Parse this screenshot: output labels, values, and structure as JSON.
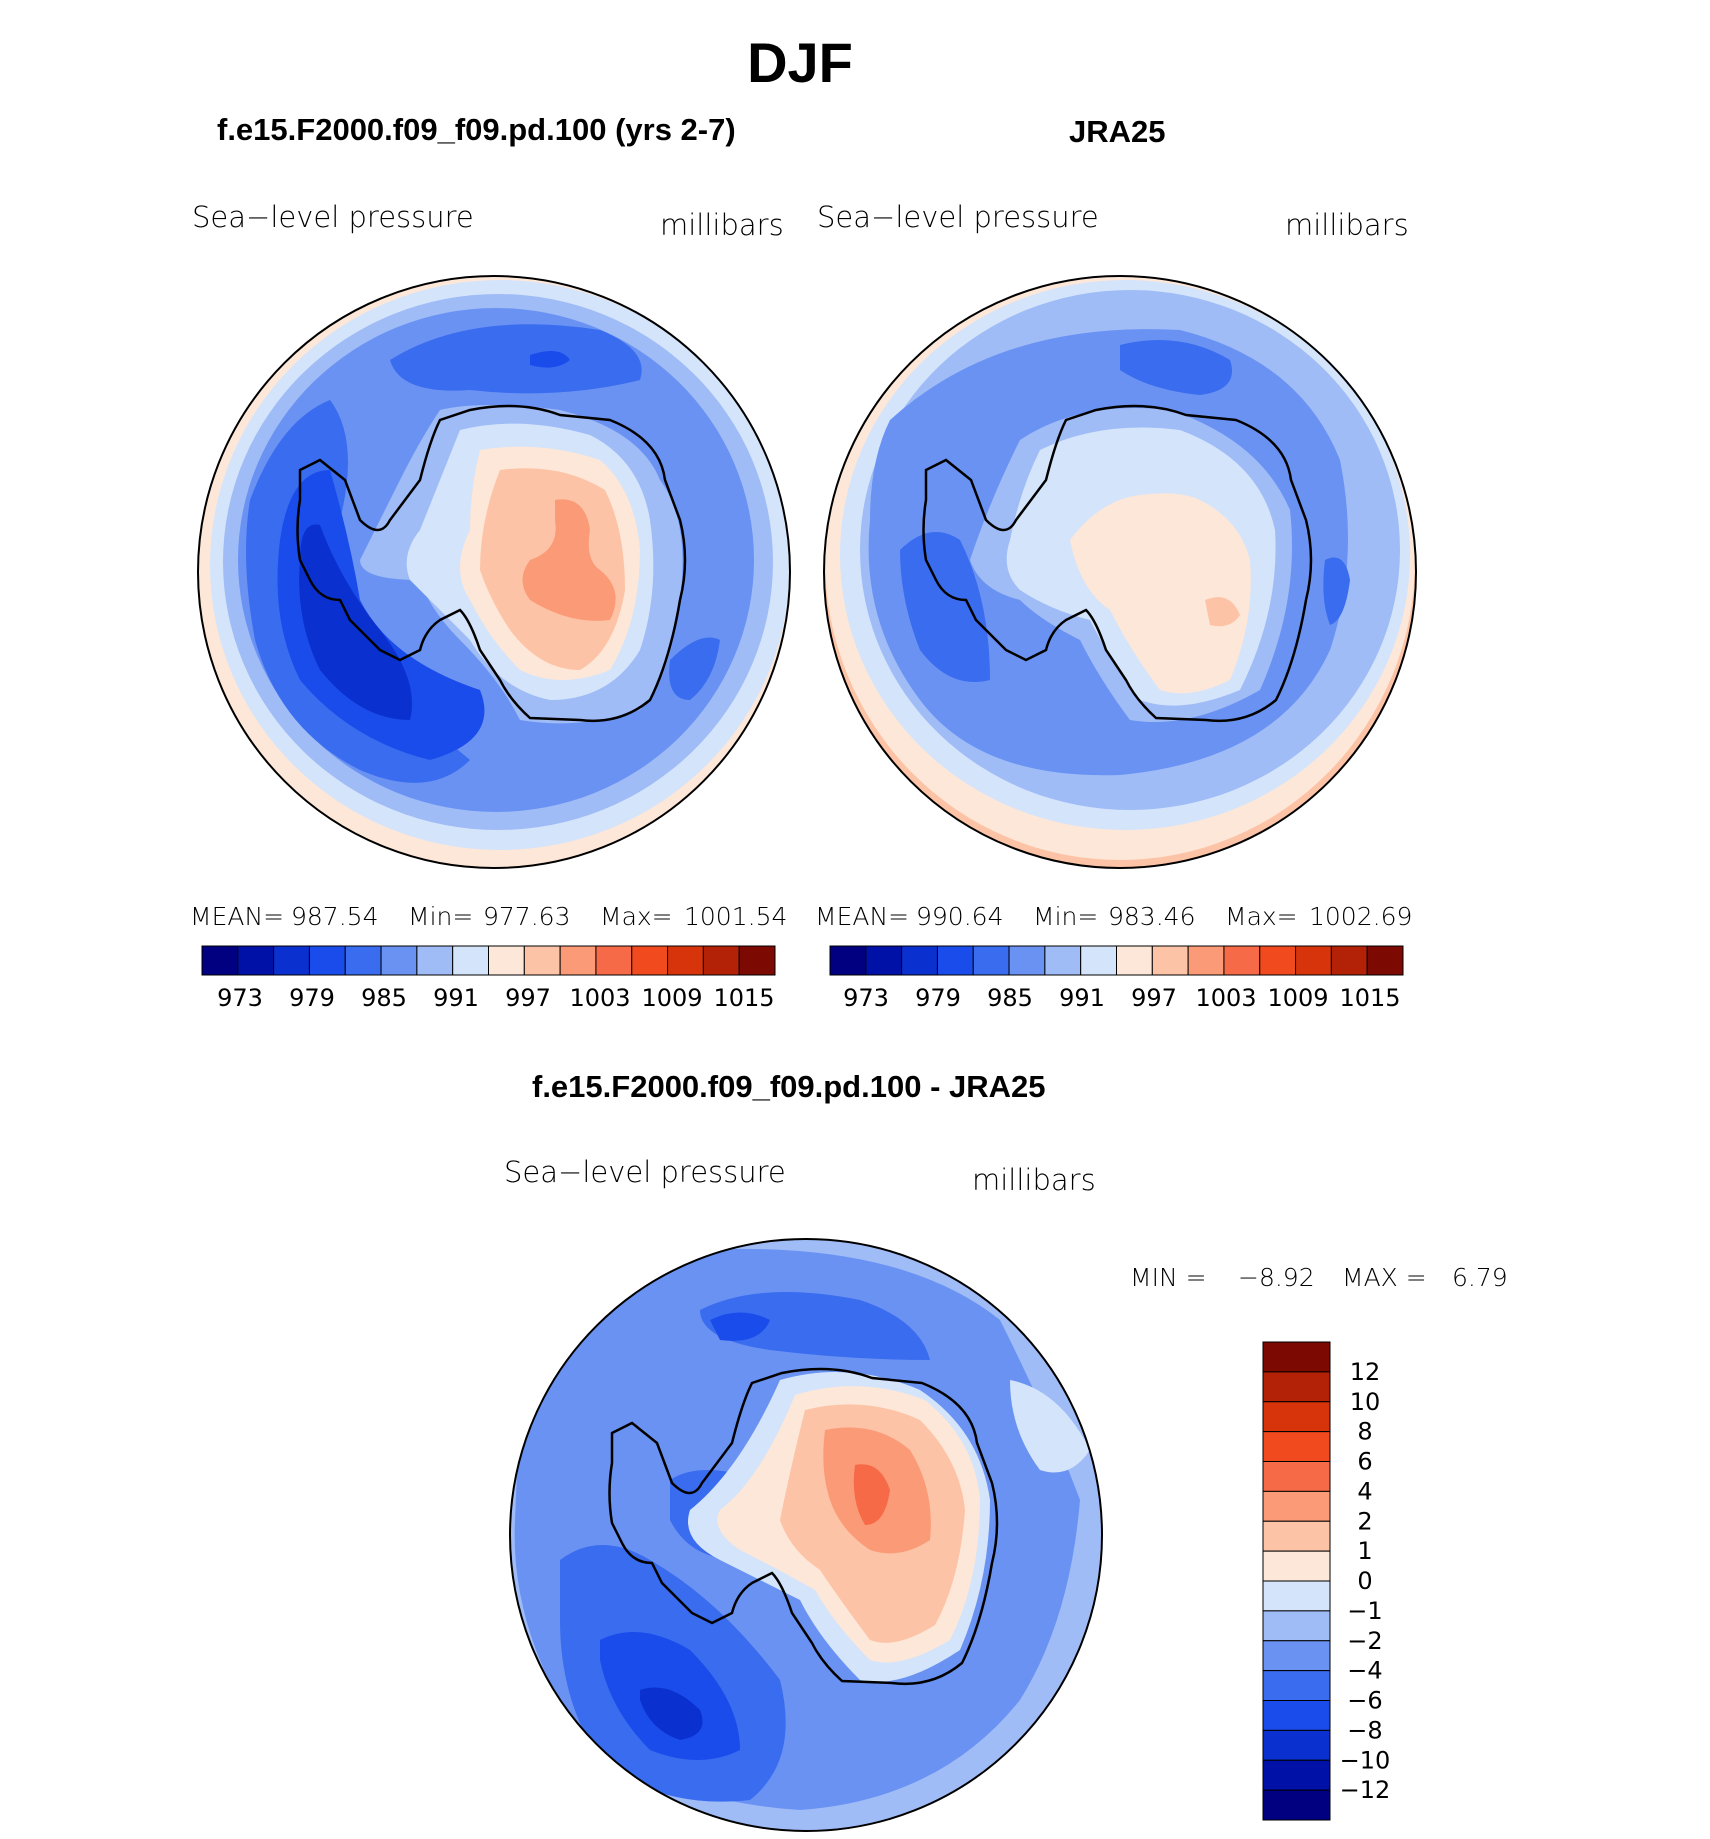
{
  "main_title": "DJF",
  "panels": [
    {
      "title": "f.e15.F2000.f09_f09.pd.100 (yrs 2-7)",
      "variable": "Sea−level pressure",
      "units": "millibars",
      "stats": {
        "mean_label": "MEAN=",
        "mean": "987.54",
        "min_label": "Min=",
        "min": "977.63",
        "max_label": "Max=",
        "max": "1001.54"
      }
    },
    {
      "title": "JRA25",
      "variable": "Sea−level pressure",
      "units": "millibars",
      "stats": {
        "mean_label": "MEAN=",
        "mean": "990.64",
        "min_label": "Min=",
        "min": "983.46",
        "max_label": "Max=",
        "max": "1002.69"
      }
    },
    {
      "title": "f.e15.F2000.f09_f09.pd.100 - JRA25",
      "variable": "Sea−level pressure",
      "units": "millibars",
      "stats": {
        "min_label": "MIN =",
        "min": "−8.92",
        "max_label": "MAX =",
        "max": "6.79"
      }
    }
  ],
  "chart_data": [
    {
      "type": "heatmap",
      "title": "f.e15.F2000.f09_f09.pd.100 (yrs 2-7)",
      "projection": "south-polar-stereographic",
      "variable": "Sea-level pressure",
      "units": "millibars",
      "mean": 987.54,
      "min": 977.63,
      "max": 1001.54,
      "contour_levels": [
        973,
        976,
        979,
        982,
        985,
        988,
        991,
        994,
        997,
        1000,
        1003,
        1006,
        1009,
        1012,
        1015
      ],
      "colorbar_tick_labels": [
        "973",
        "979",
        "985",
        "991",
        "997",
        "1003",
        "1009",
        "1015"
      ]
    },
    {
      "type": "heatmap",
      "title": "JRA25",
      "projection": "south-polar-stereographic",
      "variable": "Sea-level pressure",
      "units": "millibars",
      "mean": 990.64,
      "min": 983.46,
      "max": 1002.69,
      "contour_levels": [
        973,
        976,
        979,
        982,
        985,
        988,
        991,
        994,
        997,
        1000,
        1003,
        1006,
        1009,
        1012,
        1015
      ],
      "colorbar_tick_labels": [
        "973",
        "979",
        "985",
        "991",
        "997",
        "1003",
        "1009",
        "1015"
      ]
    },
    {
      "type": "heatmap",
      "title": "f.e15.F2000.f09_f09.pd.100 - JRA25",
      "projection": "south-polar-stereographic",
      "variable": "Sea-level pressure difference",
      "units": "millibars",
      "min": -8.92,
      "max": 6.79,
      "contour_levels": [
        -12,
        -10,
        -8,
        -6,
        -4,
        -2,
        -1,
        0,
        1,
        2,
        4,
        6,
        8,
        10,
        12
      ],
      "colorbar_tick_labels": [
        "12",
        "10",
        "8",
        "6",
        "4",
        "2",
        "1",
        "0",
        "−1",
        "−2",
        "−4",
        "−6",
        "−8",
        "−10",
        "−12"
      ]
    }
  ],
  "palette": [
    "#000080",
    "#0011a8",
    "#0a30d0",
    "#1a4cec",
    "#3a6cef",
    "#6a92f2",
    "#9fbcf7",
    "#d4e4fb",
    "#fde7d8",
    "#fdc3a6",
    "#fb9a76",
    "#f76a47",
    "#f04a1e",
    "#d8340b",
    "#b32206",
    "#7d0a02"
  ],
  "land_color": "#000000"
}
